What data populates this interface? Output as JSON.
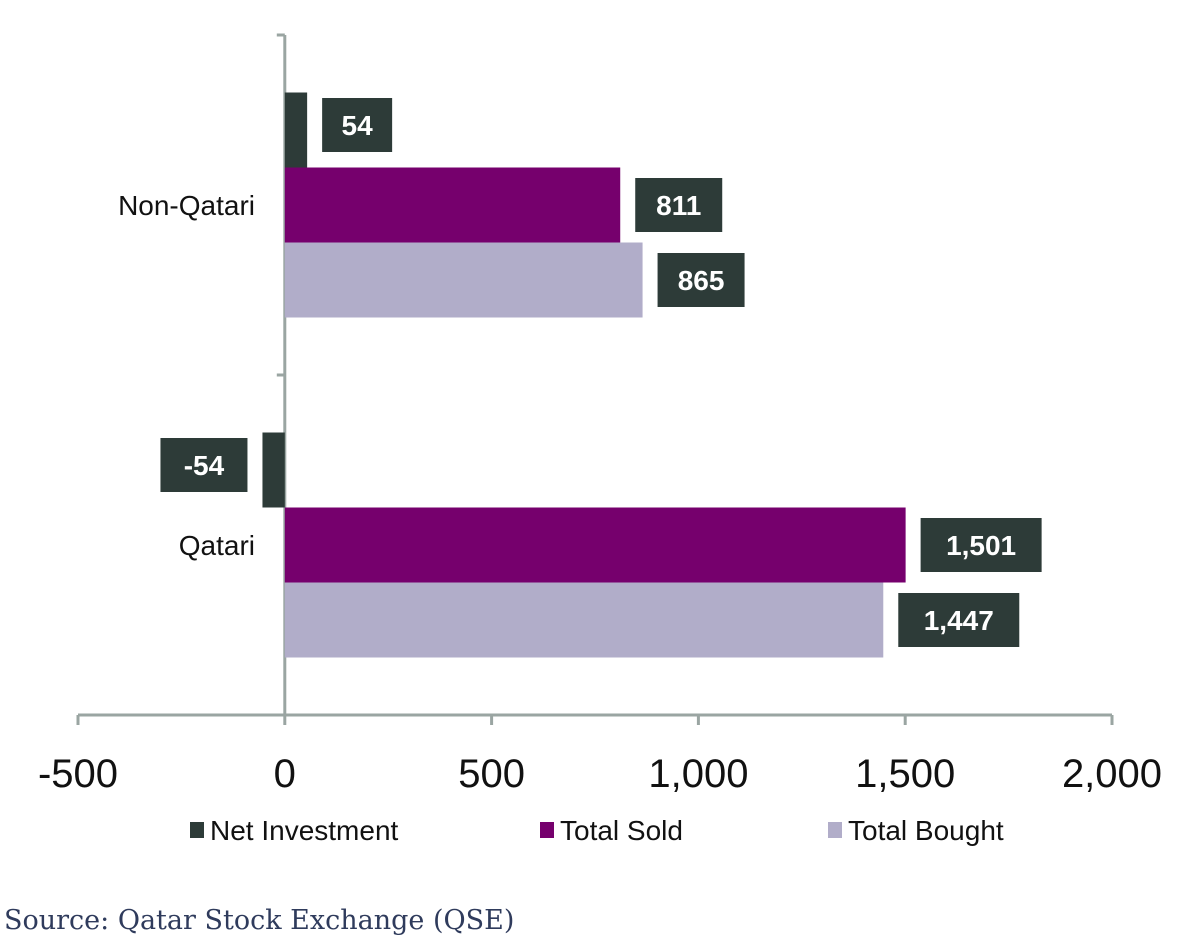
{
  "chart_data": {
    "type": "bar",
    "orientation": "horizontal",
    "categories": [
      "Non-Qatari",
      "Qatari"
    ],
    "series": [
      {
        "name": "Net Investment",
        "values": [
          54,
          -54
        ],
        "labels": [
          "54",
          "-54"
        ],
        "color": "#2d3b38"
      },
      {
        "name": "Total Sold",
        "values": [
          811,
          1501
        ],
        "labels": [
          "811",
          "1,501"
        ],
        "color": "#76006d"
      },
      {
        "name": "Total Bought",
        "values": [
          865,
          1447
        ],
        "labels": [
          "865",
          "1,447"
        ],
        "color": "#b1adc9"
      }
    ],
    "xlim": [
      -500,
      2000
    ],
    "x_ticks": [
      -500,
      0,
      500,
      1000,
      1500,
      2000
    ],
    "x_tick_labels": [
      "-500",
      "0",
      "500",
      "1,000",
      "1,500",
      "2,000"
    ],
    "grid": false,
    "legend_position": "bottom",
    "data_label_bg": "#2d3b38"
  },
  "source": "Source: Qatar Stock Exchange (QSE)"
}
